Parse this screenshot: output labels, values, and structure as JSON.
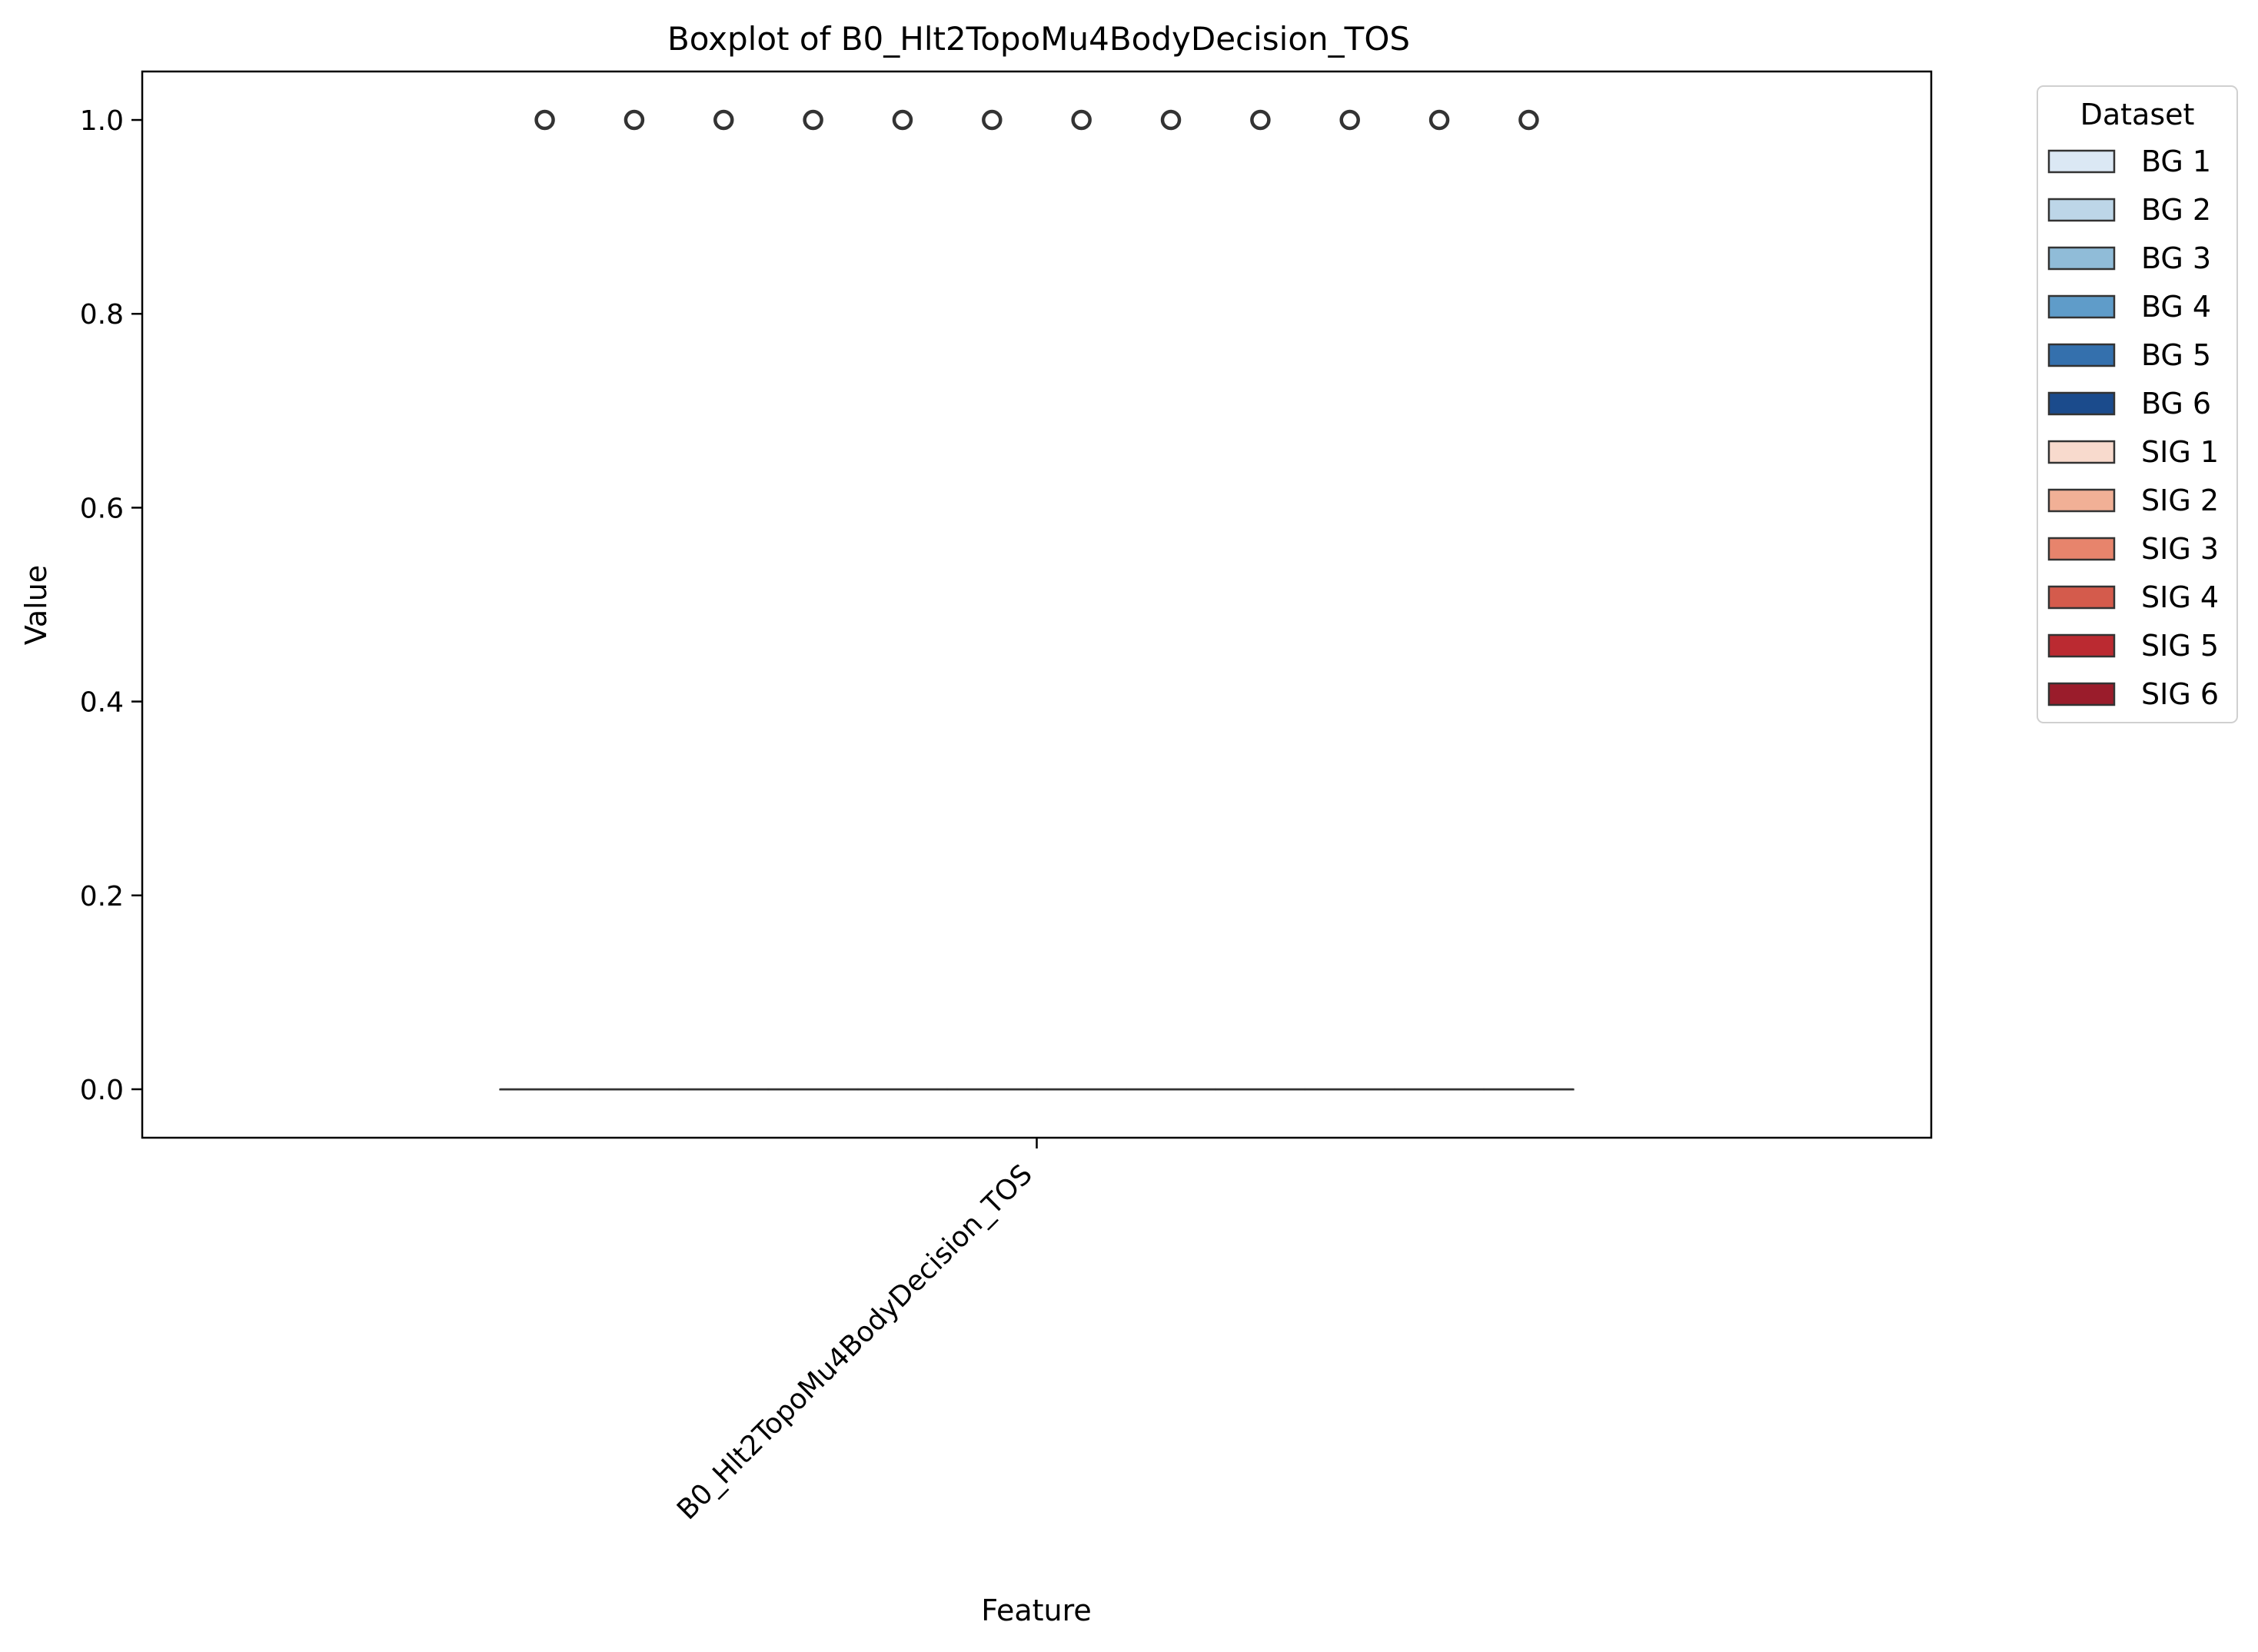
{
  "chart_data": {
    "type": "box",
    "title": "Boxplot of B0_Hlt2TopoMu4BodyDecision_TOS",
    "xlabel": "Feature",
    "ylabel": "Value",
    "categories": [
      "B0_Hlt2TopoMu4BodyDecision_TOS"
    ],
    "ylim": [
      -0.05,
      1.05
    ],
    "yticks": [
      0.0,
      0.2,
      0.4,
      0.6,
      0.8,
      1.0
    ],
    "ytick_labels": [
      "0.0",
      "0.2",
      "0.4",
      "0.6",
      "0.8",
      "1.0"
    ],
    "grid": false,
    "legend": {
      "title": "Dataset",
      "position": "outside-right-top"
    },
    "series": [
      {
        "name": "BG 1",
        "color": "#dbe8f4",
        "q1": 0,
        "median": 0,
        "q3": 0,
        "whisker_low": 0,
        "whisker_high": 0,
        "outliers": [
          1.0
        ]
      },
      {
        "name": "BG 2",
        "color": "#bdd6e8",
        "q1": 0,
        "median": 0,
        "q3": 0,
        "whisker_low": 0,
        "whisker_high": 0,
        "outliers": [
          1.0
        ]
      },
      {
        "name": "BG 3",
        "color": "#90bcd8",
        "q1": 0,
        "median": 0,
        "q3": 0,
        "whisker_low": 0,
        "whisker_high": 0,
        "outliers": [
          1.0
        ]
      },
      {
        "name": "BG 4",
        "color": "#5f9cc9",
        "q1": 0,
        "median": 0,
        "q3": 0,
        "whisker_low": 0,
        "whisker_high": 0,
        "outliers": [
          1.0
        ]
      },
      {
        "name": "BG 5",
        "color": "#3470ad",
        "q1": 0,
        "median": 0,
        "q3": 0,
        "whisker_low": 0,
        "whisker_high": 0,
        "outliers": [
          1.0
        ]
      },
      {
        "name": "BG 6",
        "color": "#1b4b8c",
        "q1": 0,
        "median": 0,
        "q3": 0,
        "whisker_low": 0,
        "whisker_high": 0,
        "outliers": [
          1.0
        ]
      },
      {
        "name": "SIG 1",
        "color": "#f8dacd",
        "q1": 0,
        "median": 0,
        "q3": 0,
        "whisker_low": 0,
        "whisker_high": 0,
        "outliers": [
          1.0
        ]
      },
      {
        "name": "SIG 2",
        "color": "#f1b096",
        "q1": 0,
        "median": 0,
        "q3": 0,
        "whisker_low": 0,
        "whisker_high": 0,
        "outliers": [
          1.0
        ]
      },
      {
        "name": "SIG 3",
        "color": "#e7846c",
        "q1": 0,
        "median": 0,
        "q3": 0,
        "whisker_low": 0,
        "whisker_high": 0,
        "outliers": [
          1.0
        ]
      },
      {
        "name": "SIG 4",
        "color": "#d45b4c",
        "q1": 0,
        "median": 0,
        "q3": 0,
        "whisker_low": 0,
        "whisker_high": 0,
        "outliers": [
          1.0
        ]
      },
      {
        "name": "SIG 5",
        "color": "#bb2a31",
        "q1": 0,
        "median": 0,
        "q3": 0,
        "whisker_low": 0,
        "whisker_high": 0,
        "outliers": [
          1.0
        ]
      },
      {
        "name": "SIG 6",
        "color": "#9a1c2b",
        "q1": 0,
        "median": 0,
        "q3": 0,
        "whisker_low": 0,
        "whisker_high": 0,
        "outliers": [
          1.0
        ]
      }
    ]
  }
}
